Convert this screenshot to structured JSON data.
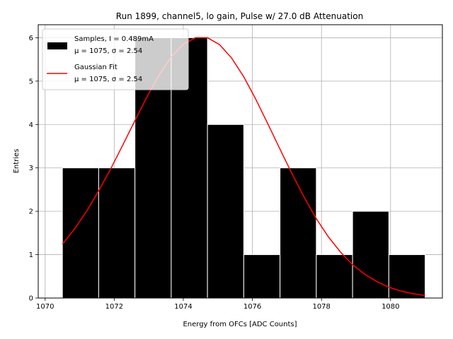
{
  "chart_data": {
    "type": "bar",
    "title": "Run 1899, channel5, lo gain, Pulse w/ 27.0 dB Attenuation",
    "xlabel": "Energy from OFCs [ADC Counts]",
    "ylabel": "Entries",
    "xlim": [
      1069.8,
      1081.5
    ],
    "ylim": [
      0,
      6.3
    ],
    "x_ticks": [
      1070,
      1072,
      1074,
      1076,
      1078,
      1080
    ],
    "y_ticks": [
      0,
      1,
      2,
      3,
      4,
      5,
      6
    ],
    "grid": true,
    "legend_position": "top-left",
    "histogram": {
      "bin_edges": [
        1070.5,
        1071.55,
        1072.6,
        1073.65,
        1074.7,
        1075.75,
        1076.8,
        1077.85,
        1078.9,
        1079.95,
        1081.0
      ],
      "counts": [
        3,
        3,
        6,
        6,
        4,
        1,
        3,
        1,
        2,
        1
      ],
      "color": "#000000",
      "edge_color": "#ffffff"
    },
    "series": [
      {
        "name": "Samples, I = 0.489mA",
        "stats": "μ = 1075, σ = 2.54",
        "kind": "histogram",
        "color": "#000000"
      },
      {
        "name": "Gaussian Fit",
        "stats": "μ = 1075, σ = 2.54",
        "kind": "line",
        "color": "#ff0000",
        "x": [
          1070.5,
          1070.85,
          1071.2,
          1071.55,
          1071.9,
          1072.25,
          1072.6,
          1072.95,
          1073.3,
          1073.65,
          1074.0,
          1074.35,
          1074.7,
          1075.05,
          1075.4,
          1075.75,
          1076.1,
          1076.45,
          1076.8,
          1077.15,
          1077.5,
          1077.85,
          1078.2,
          1078.55,
          1078.9,
          1079.25,
          1079.6,
          1079.95,
          1080.3,
          1080.65,
          1081.0
        ],
        "y": [
          1.24,
          1.59,
          2.0,
          2.47,
          2.98,
          3.53,
          4.09,
          4.64,
          5.14,
          5.56,
          5.85,
          6.0,
          6.0,
          5.84,
          5.53,
          5.1,
          4.58,
          4.01,
          3.43,
          2.86,
          2.32,
          1.83,
          1.41,
          1.06,
          0.77,
          0.55,
          0.38,
          0.25,
          0.16,
          0.1,
          0.06
        ]
      }
    ]
  }
}
